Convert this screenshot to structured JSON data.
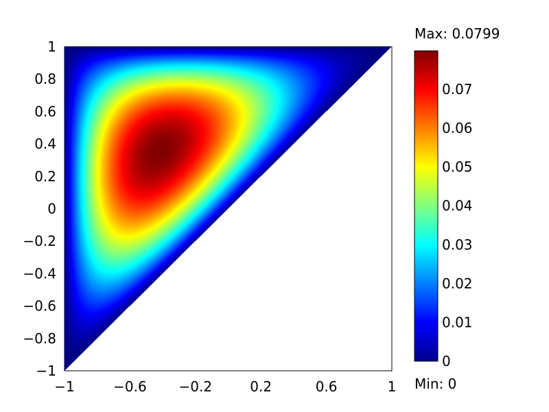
{
  "chart_data": {
    "type": "heatmap",
    "title": "",
    "xlabel": "",
    "ylabel": "",
    "xlim": [
      -1,
      1
    ],
    "ylim": [
      -1,
      1
    ],
    "domain": "triangle with vertices (-1,-1), (-1,1), (1,1); region y >= x",
    "x_ticks": [
      "-1",
      "-0.6",
      "-0.2",
      "0.2",
      "0.6",
      "1"
    ],
    "y_ticks": [
      "1",
      "0.8",
      "0.6",
      "0.4",
      "0.2",
      "0",
      "-0.2",
      "-0.4",
      "-0.6",
      "-0.8",
      "-1"
    ],
    "colormap": "jet",
    "color_range": [
      0,
      0.0799
    ],
    "colorbar_ticks": [
      "0.07",
      "0.06",
      "0.05",
      "0.04",
      "0.03",
      "0.02",
      "0.01",
      "0"
    ],
    "max_label": "Max: 0.0799",
    "min_label": "Min: 0",
    "peak": {
      "x": -0.3,
      "y": 0.3,
      "value": 0.0799
    },
    "grid": false,
    "legend": "colorbar right"
  }
}
